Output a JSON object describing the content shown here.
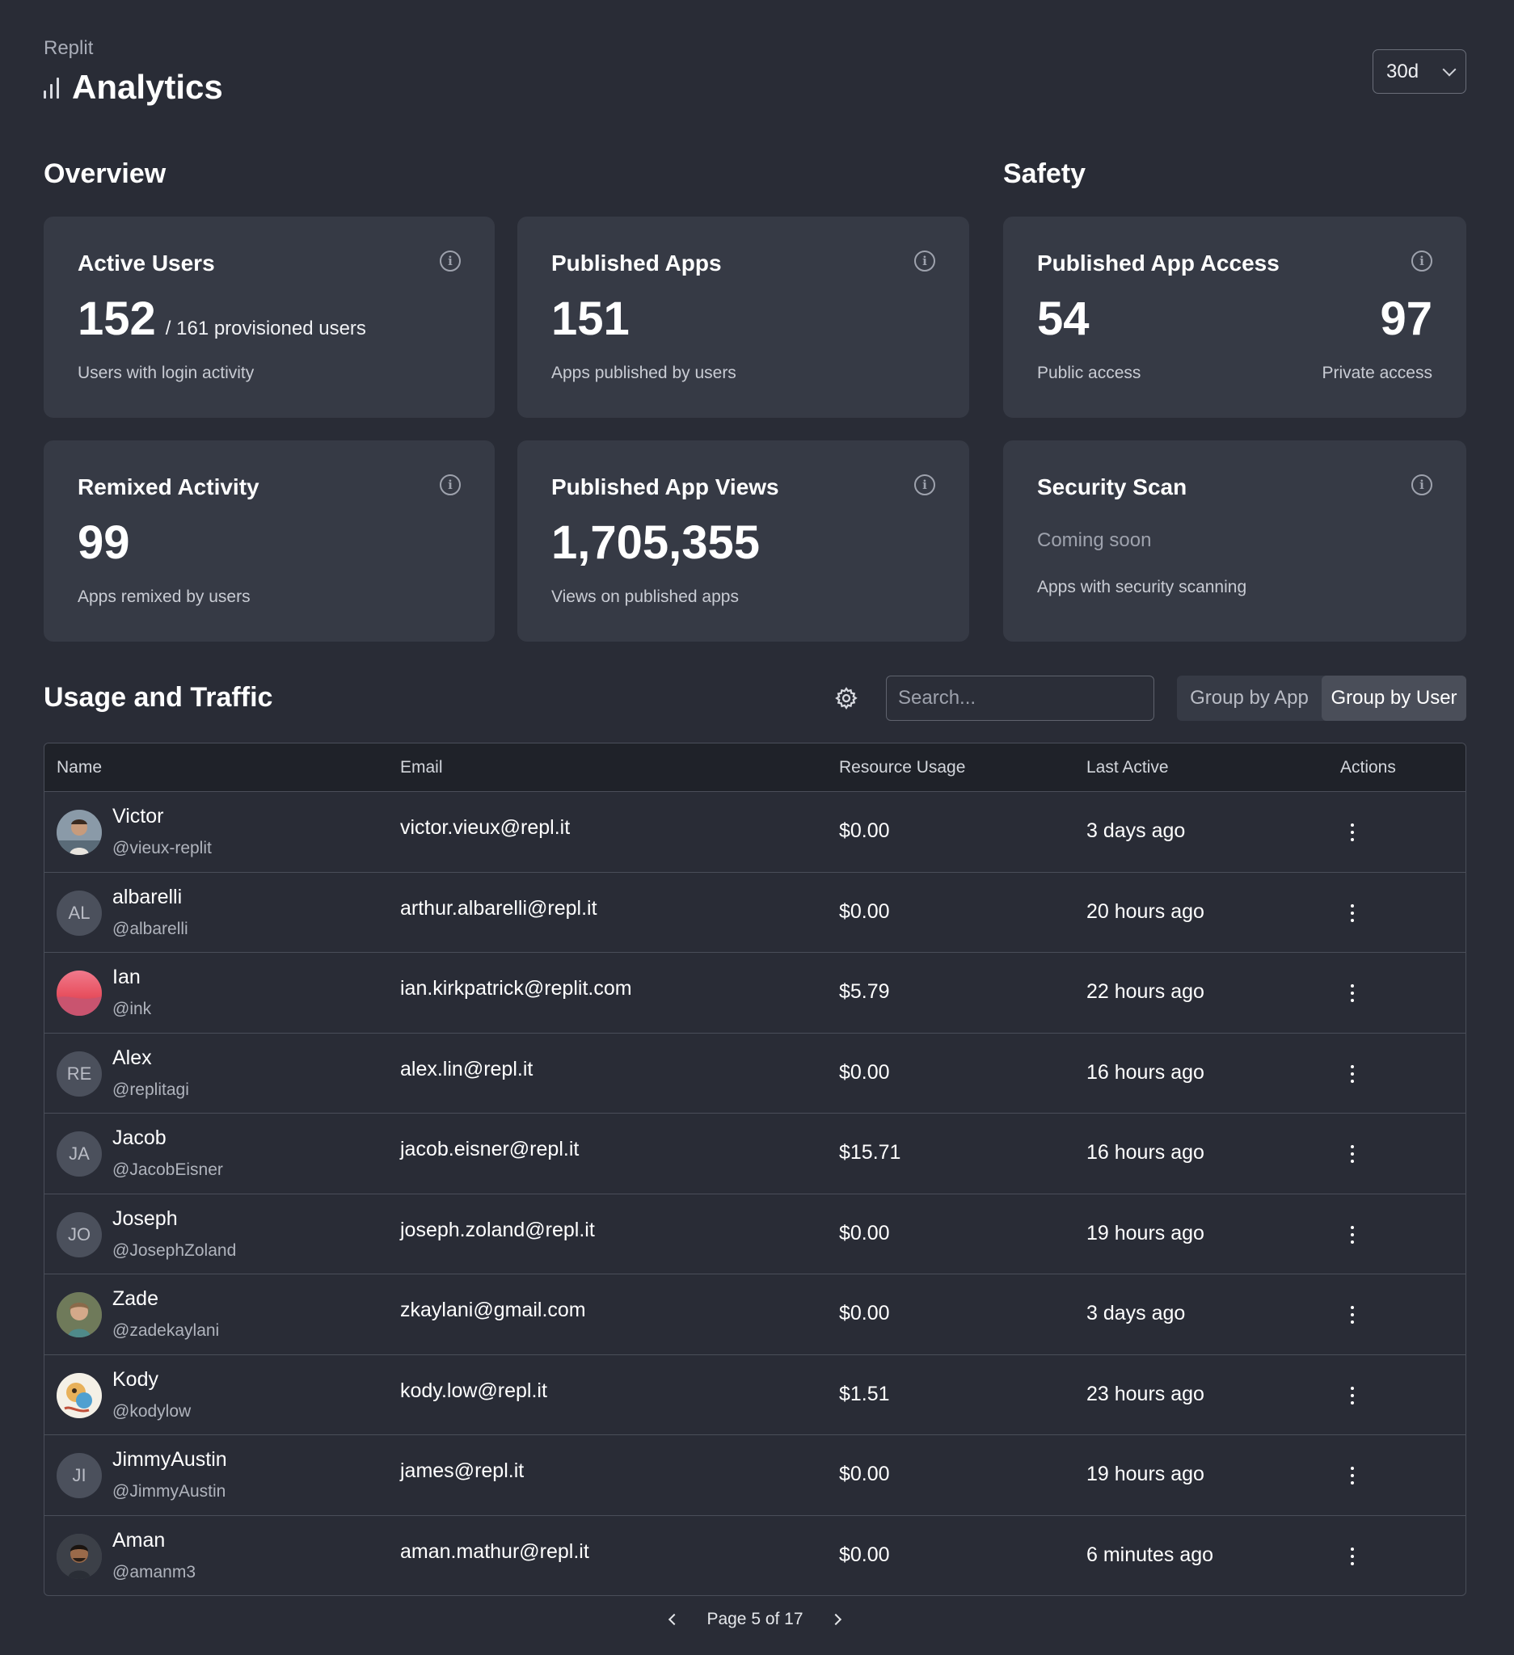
{
  "header": {
    "brand": "Replit",
    "title": "Analytics",
    "range": "30d"
  },
  "sections": {
    "overview": "Overview",
    "safety": "Safety",
    "usage": "Usage and Traffic"
  },
  "cards": {
    "active_users": {
      "title": "Active Users",
      "value": "152",
      "sub": "/ 161 provisioned users",
      "desc": "Users with login activity"
    },
    "published_apps": {
      "title": "Published Apps",
      "value": "151",
      "desc": "Apps published by users"
    },
    "app_access": {
      "title": "Published App Access",
      "public_value": "54",
      "private_value": "97",
      "public_label": "Public access",
      "private_label": "Private access"
    },
    "remixed": {
      "title": "Remixed Activity",
      "value": "99",
      "desc": "Apps remixed by users"
    },
    "app_views": {
      "title": "Published App Views",
      "value": "1,705,355",
      "desc": "Views on published apps"
    },
    "security": {
      "title": "Security Scan",
      "status": "Coming soon",
      "desc": "Apps with security scanning"
    }
  },
  "toolbar": {
    "search_placeholder": "Search...",
    "group_app": "Group by App",
    "group_user": "Group by User"
  },
  "table": {
    "headers": {
      "name": "Name",
      "email": "Email",
      "usage": "Resource Usage",
      "last": "Last Active",
      "actions": "Actions"
    },
    "rows": [
      {
        "name": "Victor",
        "handle": "@vieux-replit",
        "email": "victor.vieux@repl.it",
        "usage": "$0.00",
        "last": "3 days ago",
        "initials": ""
      },
      {
        "name": "albarelli",
        "handle": "@albarelli",
        "email": "arthur.albarelli@repl.it",
        "usage": "$0.00",
        "last": "20 hours ago",
        "initials": "AL"
      },
      {
        "name": "Ian",
        "handle": "@ink",
        "email": "ian.kirkpatrick@replit.com",
        "usage": "$5.79",
        "last": "22 hours ago",
        "initials": ""
      },
      {
        "name": "Alex",
        "handle": "@replitagi",
        "email": "alex.lin@repl.it",
        "usage": "$0.00",
        "last": "16 hours ago",
        "initials": "RE"
      },
      {
        "name": "Jacob",
        "handle": "@JacobEisner",
        "email": "jacob.eisner@repl.it",
        "usage": "$15.71",
        "last": "16 hours ago",
        "initials": "JA"
      },
      {
        "name": "Joseph",
        "handle": "@JosephZoland",
        "email": "joseph.zoland@repl.it",
        "usage": "$0.00",
        "last": "19 hours ago",
        "initials": "JO"
      },
      {
        "name": "Zade",
        "handle": "@zadekaylani",
        "email": "zkaylani@gmail.com",
        "usage": "$0.00",
        "last": "3 days ago",
        "initials": ""
      },
      {
        "name": "Kody",
        "handle": "@kodylow",
        "email": "kody.low@repl.it",
        "usage": "$1.51",
        "last": "23 hours ago",
        "initials": ""
      },
      {
        "name": "JimmyAustin",
        "handle": "@JimmyAustin",
        "email": "james@repl.it",
        "usage": "$0.00",
        "last": "19 hours ago",
        "initials": "JI"
      },
      {
        "name": "Aman",
        "handle": "@amanm3",
        "email": "aman.mathur@repl.it",
        "usage": "$0.00",
        "last": "6 minutes ago",
        "initials": ""
      }
    ]
  },
  "pager": {
    "label": "Page 5 of 17"
  }
}
